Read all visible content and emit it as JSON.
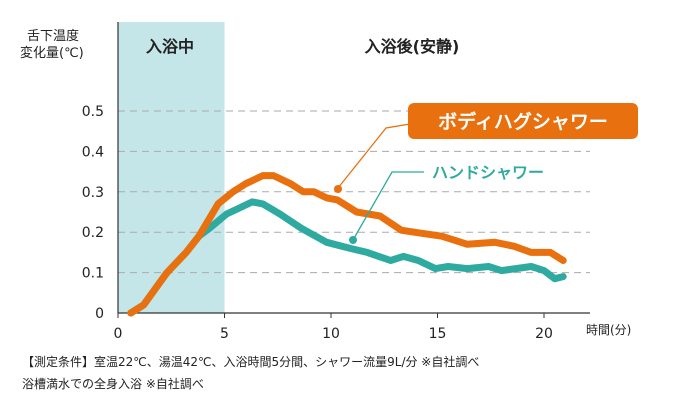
{
  "chart_data": {
    "type": "line",
    "ylabel": [
      "舌下温度",
      "変化量(℃)"
    ],
    "xlabel": "時間(分)",
    "xlim": [
      0,
      22
    ],
    "ylim": [
      0,
      0.55
    ],
    "xticks": [
      "0",
      "5",
      "10",
      "15",
      "20"
    ],
    "yticks": [
      "0",
      "0.1",
      "0.2",
      "0.3",
      "0.4",
      "0.5"
    ],
    "grid": "horizontal dashed",
    "regions": [
      {
        "label": "入浴中",
        "from": 0,
        "to": 5,
        "color": "#c5e6e8"
      },
      {
        "label": "入浴後(安静)",
        "from": 5,
        "to": 22
      }
    ],
    "series": [
      {
        "name": "ボディハグシャワー",
        "color": "#e8700f",
        "x": [
          0.6,
          1.2,
          2.3,
          3.2,
          3.8,
          4.7,
          5.4,
          6.0,
          6.8,
          7.3,
          8.1,
          8.7,
          9.2,
          9.8,
          10.3,
          11.2,
          12.3,
          13.3,
          13.9,
          15.2,
          16.4,
          17.7,
          18.6,
          19.4,
          20.3,
          20.9
        ],
        "y": [
          0,
          0.02,
          0.1,
          0.15,
          0.19,
          0.27,
          0.3,
          0.32,
          0.34,
          0.34,
          0.32,
          0.3,
          0.3,
          0.285,
          0.28,
          0.25,
          0.24,
          0.205,
          0.2,
          0.19,
          0.17,
          0.175,
          0.165,
          0.15,
          0.15,
          0.13
        ]
      },
      {
        "name": "ハンドシャワー",
        "color": "#2faaa0",
        "x": [
          0.6,
          1.2,
          2.3,
          3.2,
          3.8,
          4.3,
          5.1,
          5.7,
          6.3,
          6.8,
          7.6,
          8.6,
          9.8,
          10.9,
          11.7,
          12.8,
          13.4,
          14.1,
          14.9,
          15.5,
          16.4,
          17.4,
          18.0,
          19.4,
          20.0,
          20.5,
          20.9
        ],
        "y": [
          0,
          0.02,
          0.1,
          0.15,
          0.19,
          0.21,
          0.245,
          0.26,
          0.275,
          0.27,
          0.245,
          0.21,
          0.175,
          0.16,
          0.15,
          0.13,
          0.14,
          0.13,
          0.11,
          0.115,
          0.11,
          0.115,
          0.105,
          0.115,
          0.105,
          0.085,
          0.09
        ]
      }
    ]
  },
  "notes": [
    "【測定条件】室温22℃、湯温42℃、入浴時間5分間、シャワー流量9L/分 ※自社調べ",
    "浴槽満水での全身入浴 ※自社調べ"
  ]
}
